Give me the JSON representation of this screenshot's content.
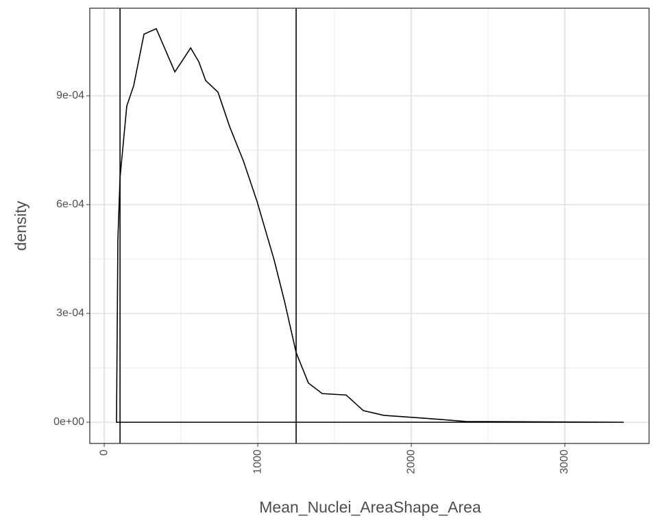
{
  "chart_data": {
    "type": "density",
    "x_label": "Mean_Nuclei_AreaShape_Area",
    "y_label": "density",
    "x": [
      80,
      89,
      103,
      147,
      192,
      259,
      339,
      393,
      460,
      504,
      563,
      616,
      661,
      741,
      817,
      906,
      996,
      1107,
      1174,
      1250,
      1330,
      1420,
      1576,
      1688,
      1821,
      2089,
      2357,
      3384
    ],
    "values": [
      0,
      0.000504,
      0.000674,
      0.000872,
      0.000928,
      0.00107,
      0.001085,
      0.001032,
      0.000966,
      0.000994,
      0.001032,
      0.000994,
      0.000942,
      0.00091,
      0.000815,
      0.000721,
      0.000608,
      0.000447,
      0.000334,
      0.000192,
      0.000108,
      7.9e-05,
      7.5e-05,
      3.2e-05,
      1.9e-05,
      1.1e-05,
      2e-06,
      0
    ],
    "color": "#000000",
    "vlines": [
      103,
      1250
    ],
    "xlim": [
      -94,
      3549
    ],
    "ylim": [
      -5.85e-05,
      0.0011415
    ],
    "xticks": [
      0,
      1000,
      2000,
      3000
    ],
    "yticks": [
      {
        "value": 0,
        "label": "0e+00"
      },
      {
        "value": 0.0003,
        "label": "3e-04"
      },
      {
        "value": 0.0006,
        "label": "6e-04"
      },
      {
        "value": 0.0009,
        "label": "9e-04"
      }
    ],
    "grid": true
  }
}
